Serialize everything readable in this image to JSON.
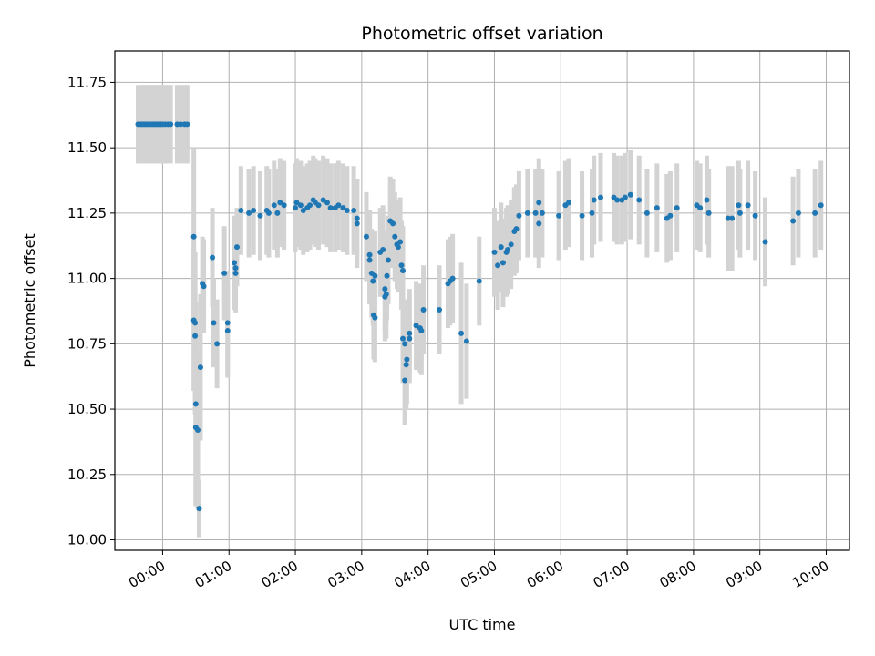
{
  "chart_data": {
    "type": "scatter",
    "title": "Photometric offset variation",
    "xlabel": "UTC time",
    "ylabel": "Photometric offset",
    "grid": true,
    "xlim": [
      -0.72,
      10.35
    ],
    "ylim": [
      9.96,
      11.87
    ],
    "y_ticks": [
      10.0,
      10.25,
      10.5,
      10.75,
      11.0,
      11.25,
      11.5,
      11.75
    ],
    "y_tick_labels": [
      "10.00",
      "10.25",
      "10.50",
      "10.75",
      "11.00",
      "11.25",
      "11.50",
      "11.75"
    ],
    "x_ticks": [
      0,
      1,
      2,
      3,
      4,
      5,
      6,
      7,
      8,
      9,
      10
    ],
    "x_tick_labels": [
      "00:00",
      "01:00",
      "02:00",
      "03:00",
      "04:00",
      "05:00",
      "06:00",
      "07:00",
      "08:00",
      "09:00",
      "10:00"
    ],
    "colors": {
      "points": "#1f77b4",
      "errorbars": "#d3d3d3",
      "grid": "#b0b0b0"
    },
    "series": [
      {
        "points": [
          [
            -0.37,
            11.59,
            0.15
          ],
          [
            -0.33,
            11.59,
            0.15
          ],
          [
            -0.3,
            11.59,
            0.15
          ],
          [
            -0.27,
            11.59,
            0.15
          ],
          [
            -0.24,
            11.59,
            0.15
          ],
          [
            -0.21,
            11.59,
            0.15
          ],
          [
            -0.18,
            11.59,
            0.15
          ],
          [
            -0.15,
            11.59,
            0.15
          ],
          [
            -0.12,
            11.59,
            0.15
          ],
          [
            -0.09,
            11.59,
            0.15
          ],
          [
            -0.06,
            11.59,
            0.15
          ],
          [
            -0.03,
            11.59,
            0.15
          ],
          [
            0.0,
            11.59,
            0.15
          ],
          [
            0.04,
            11.59,
            0.15
          ],
          [
            0.08,
            11.59,
            0.15
          ],
          [
            0.12,
            11.59,
            0.15
          ],
          [
            0.22,
            11.59,
            0.15
          ],
          [
            0.27,
            11.59,
            0.15
          ],
          [
            0.33,
            11.59,
            0.15
          ],
          [
            0.37,
            11.59,
            0.15
          ],
          [
            0.47,
            11.16,
            0.34
          ],
          [
            0.47,
            10.84,
            0.27
          ],
          [
            0.49,
            10.83,
            0.27
          ],
          [
            0.49,
            10.78,
            0.3
          ],
          [
            0.5,
            10.52,
            0.39
          ],
          [
            0.5,
            10.43,
            0.3
          ],
          [
            0.53,
            10.42,
            0.3
          ],
          [
            0.55,
            10.12,
            0.11
          ],
          [
            0.57,
            10.66,
            0.28
          ],
          [
            0.6,
            10.98,
            0.18
          ],
          [
            0.62,
            10.97,
            0.18
          ],
          [
            0.75,
            11.08,
            0.19
          ],
          [
            0.77,
            10.83,
            0.17
          ],
          [
            0.82,
            10.75,
            0.17
          ],
          [
            0.93,
            11.02,
            0.18
          ],
          [
            0.98,
            10.83,
            0.2
          ],
          [
            0.98,
            10.8,
            0.18
          ],
          [
            1.08,
            11.06,
            0.18
          ],
          [
            1.1,
            11.04,
            0.15
          ],
          [
            1.1,
            11.02,
            0.15
          ],
          [
            1.12,
            11.12,
            0.15
          ],
          [
            1.18,
            11.26,
            0.17
          ],
          [
            1.3,
            11.25,
            0.17
          ],
          [
            1.37,
            11.26,
            0.17
          ],
          [
            1.47,
            11.24,
            0.17
          ],
          [
            1.57,
            11.26,
            0.17
          ],
          [
            1.6,
            11.25,
            0.17
          ],
          [
            1.68,
            11.28,
            0.17
          ],
          [
            1.73,
            11.25,
            0.17
          ],
          [
            1.77,
            11.29,
            0.17
          ],
          [
            1.83,
            11.28,
            0.17
          ],
          [
            2.0,
            11.27,
            0.17
          ],
          [
            2.02,
            11.29,
            0.17
          ],
          [
            2.08,
            11.28,
            0.17
          ],
          [
            2.12,
            11.26,
            0.17
          ],
          [
            2.18,
            11.27,
            0.17
          ],
          [
            2.22,
            11.28,
            0.17
          ],
          [
            2.27,
            11.3,
            0.17
          ],
          [
            2.3,
            11.29,
            0.17
          ],
          [
            2.35,
            11.28,
            0.17
          ],
          [
            2.42,
            11.3,
            0.17
          ],
          [
            2.48,
            11.29,
            0.17
          ],
          [
            2.53,
            11.27,
            0.17
          ],
          [
            2.6,
            11.27,
            0.17
          ],
          [
            2.65,
            11.28,
            0.17
          ],
          [
            2.72,
            11.27,
            0.17
          ],
          [
            2.78,
            11.26,
            0.17
          ],
          [
            2.88,
            11.26,
            0.17
          ],
          [
            2.93,
            11.23,
            0.15
          ],
          [
            2.93,
            11.21,
            0.17
          ],
          [
            3.07,
            11.16,
            0.17
          ],
          [
            3.12,
            11.09,
            0.17
          ],
          [
            3.12,
            11.07,
            0.17
          ],
          [
            3.15,
            11.02,
            0.17
          ],
          [
            3.17,
            10.99,
            0.17
          ],
          [
            3.18,
            10.86,
            0.17
          ],
          [
            3.2,
            10.85,
            0.17
          ],
          [
            3.2,
            11.01,
            0.17
          ],
          [
            3.28,
            11.1,
            0.17
          ],
          [
            3.32,
            11.11,
            0.17
          ],
          [
            3.35,
            10.96,
            0.17
          ],
          [
            3.35,
            10.93,
            0.17
          ],
          [
            3.37,
            10.94,
            0.17
          ],
          [
            3.38,
            11.01,
            0.17
          ],
          [
            3.4,
            11.07,
            0.17
          ],
          [
            3.43,
            11.22,
            0.17
          ],
          [
            3.47,
            11.21,
            0.17
          ],
          [
            3.5,
            11.16,
            0.17
          ],
          [
            3.53,
            11.13,
            0.17
          ],
          [
            3.55,
            11.12,
            0.17
          ],
          [
            3.58,
            11.14,
            0.17
          ],
          [
            3.6,
            11.05,
            0.17
          ],
          [
            3.62,
            11.03,
            0.17
          ],
          [
            3.62,
            10.77,
            0.17
          ],
          [
            3.65,
            10.75,
            0.17
          ],
          [
            3.65,
            10.61,
            0.17
          ],
          [
            3.67,
            10.67,
            0.17
          ],
          [
            3.68,
            10.69,
            0.17
          ],
          [
            3.72,
            10.79,
            0.17
          ],
          [
            3.72,
            10.77,
            0.17
          ],
          [
            3.82,
            10.82,
            0.17
          ],
          [
            3.88,
            10.81,
            0.17
          ],
          [
            3.9,
            10.8,
            0.17
          ],
          [
            3.93,
            10.88,
            0.17
          ],
          [
            4.17,
            10.88,
            0.17
          ],
          [
            4.3,
            10.98,
            0.17
          ],
          [
            4.33,
            10.99,
            0.17
          ],
          [
            4.37,
            11.0,
            0.17
          ],
          [
            4.5,
            10.79,
            0.27
          ],
          [
            4.58,
            10.76,
            0.22
          ],
          [
            4.77,
            10.99,
            0.17
          ],
          [
            5.0,
            11.1,
            0.17
          ],
          [
            5.05,
            11.05,
            0.17
          ],
          [
            5.1,
            11.12,
            0.17
          ],
          [
            5.13,
            11.06,
            0.17
          ],
          [
            5.18,
            11.1,
            0.17
          ],
          [
            5.2,
            11.11,
            0.17
          ],
          [
            5.25,
            11.13,
            0.17
          ],
          [
            5.3,
            11.18,
            0.17
          ],
          [
            5.33,
            11.19,
            0.17
          ],
          [
            5.37,
            11.24,
            0.17
          ],
          [
            5.5,
            11.25,
            0.17
          ],
          [
            5.62,
            11.25,
            0.17
          ],
          [
            5.67,
            11.29,
            0.17
          ],
          [
            5.67,
            11.21,
            0.17
          ],
          [
            5.72,
            11.25,
            0.17
          ],
          [
            5.97,
            11.24,
            0.17
          ],
          [
            6.07,
            11.28,
            0.17
          ],
          [
            6.12,
            11.29,
            0.17
          ],
          [
            6.32,
            11.24,
            0.17
          ],
          [
            6.47,
            11.25,
            0.17
          ],
          [
            6.5,
            11.3,
            0.17
          ],
          [
            6.6,
            11.31,
            0.17
          ],
          [
            6.8,
            11.31,
            0.17
          ],
          [
            6.85,
            11.3,
            0.17
          ],
          [
            6.92,
            11.3,
            0.17
          ],
          [
            6.97,
            11.31,
            0.17
          ],
          [
            7.05,
            11.32,
            0.17
          ],
          [
            7.18,
            11.3,
            0.17
          ],
          [
            7.3,
            11.25,
            0.17
          ],
          [
            7.45,
            11.27,
            0.17
          ],
          [
            7.6,
            11.23,
            0.17
          ],
          [
            7.65,
            11.24,
            0.17
          ],
          [
            7.75,
            11.27,
            0.17
          ],
          [
            8.05,
            11.28,
            0.17
          ],
          [
            8.1,
            11.27,
            0.17
          ],
          [
            8.2,
            11.3,
            0.17
          ],
          [
            8.23,
            11.25,
            0.17
          ],
          [
            8.52,
            11.23,
            0.2
          ],
          [
            8.58,
            11.23,
            0.2
          ],
          [
            8.68,
            11.28,
            0.17
          ],
          [
            8.7,
            11.25,
            0.17
          ],
          [
            8.82,
            11.28,
            0.17
          ],
          [
            8.93,
            11.24,
            0.17
          ],
          [
            9.08,
            11.14,
            0.17
          ],
          [
            9.5,
            11.22,
            0.17
          ],
          [
            9.58,
            11.25,
            0.17
          ],
          [
            9.83,
            11.25,
            0.17
          ],
          [
            9.92,
            11.28,
            0.17
          ]
        ]
      }
    ]
  }
}
